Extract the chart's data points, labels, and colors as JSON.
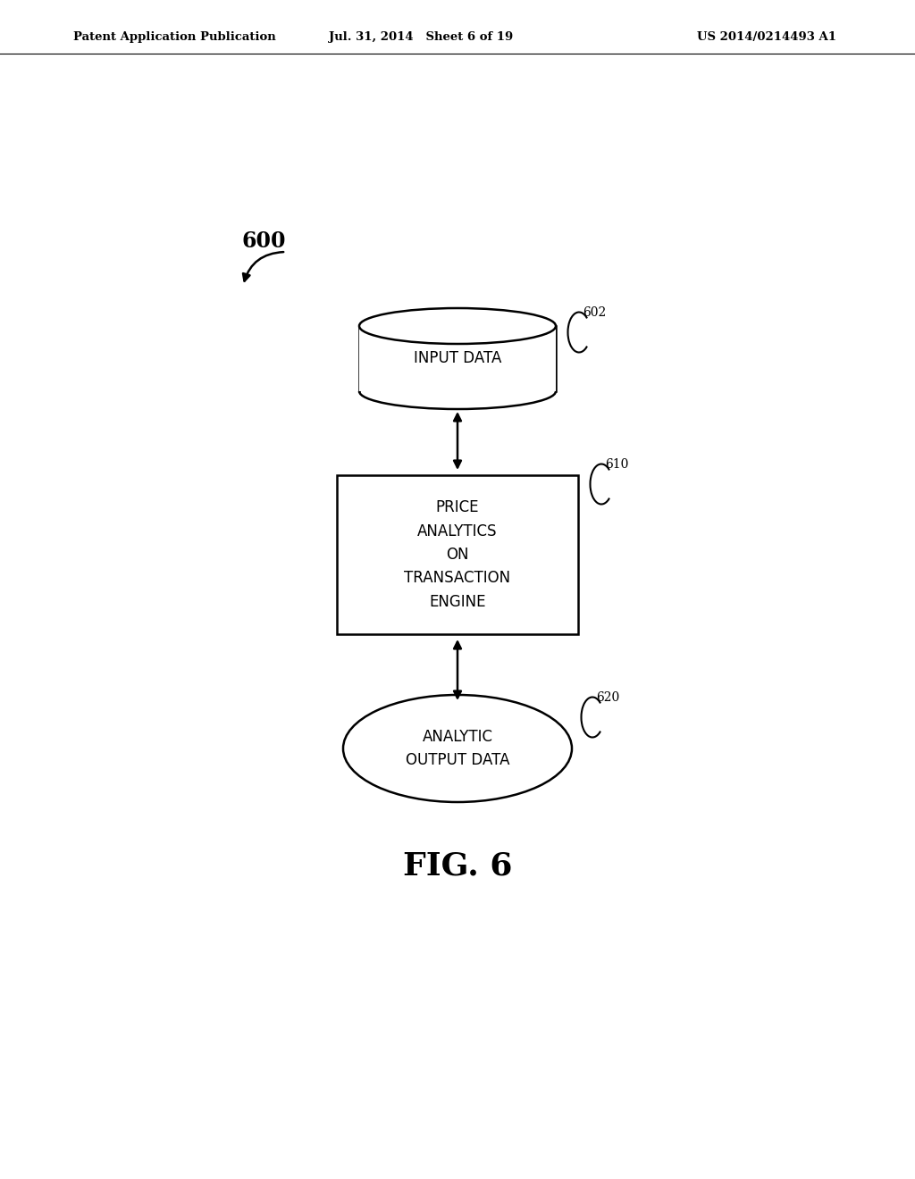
{
  "bg_color": "#ffffff",
  "text_color": "#000000",
  "header_left": "Patent Application Publication",
  "header_mid": "Jul. 31, 2014   Sheet 6 of 19",
  "header_right": "US 2014/0214493 A1",
  "fig_label": "FIG. 6",
  "diagram_label": "600",
  "node_602_label": "602",
  "node_610_label": "610",
  "node_620_label": "620",
  "input_data_text": "INPUT DATA",
  "engine_text": "PRICE\nANALYTICS\nON\nTRANSACTION\nENGINE",
  "output_text": "ANALYTIC\nOUTPUT DATA"
}
